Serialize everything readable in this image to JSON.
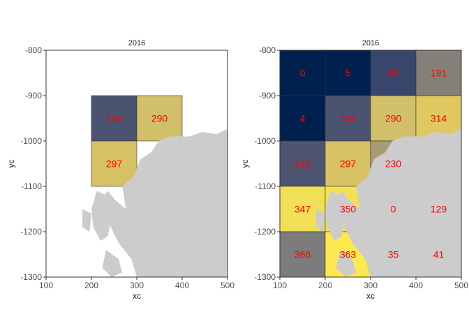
{
  "chart_data": [
    {
      "type": "heatmap",
      "title": "2016",
      "xlabel": "xc",
      "ylabel": "yc",
      "xlim": [
        100,
        500
      ],
      "ylim": [
        -1300,
        -800
      ],
      "x_ticks": [
        "100",
        "200",
        "300",
        "400",
        "500"
      ],
      "y_ticks": [
        "-800",
        "-900",
        "-1000",
        "-1100",
        "-1200",
        "-1300"
      ],
      "cell_width": 100,
      "cell_height": 100,
      "cells": [
        {
          "x0": 200,
          "y0": -1000,
          "value": 108,
          "label": "108",
          "color": "#4a5370"
        },
        {
          "x0": 300,
          "y0": -1000,
          "value": 290,
          "label": "290",
          "color": "#d2bf6a"
        },
        {
          "x0": 200,
          "y0": -1100,
          "value": 297,
          "label": "297",
          "color": "#d6c164"
        }
      ]
    },
    {
      "type": "heatmap",
      "title": "2016",
      "xlabel": "xc",
      "ylabel": "yc",
      "xlim": [
        100,
        500
      ],
      "ylim": [
        -1300,
        -800
      ],
      "x_ticks": [
        "100",
        "200",
        "300",
        "400",
        "500"
      ],
      "y_ticks": [
        "-800",
        "-900",
        "-1000",
        "-1100",
        "-1200",
        "-1300"
      ],
      "cell_width": 100,
      "cell_height": 100,
      "cells": [
        {
          "x0": 100,
          "y0": -900,
          "value": 0,
          "label": "0",
          "color": "#00204e"
        },
        {
          "x0": 200,
          "y0": -900,
          "value": 5,
          "label": "5",
          "color": "#00214f"
        },
        {
          "x0": 300,
          "y0": -900,
          "value": 80,
          "label": "80",
          "color": "#39466c"
        },
        {
          "x0": 400,
          "y0": -900,
          "value": 191,
          "label": "191",
          "color": "#858077"
        },
        {
          "x0": 100,
          "y0": -1000,
          "value": 4,
          "label": "4",
          "color": "#00214f"
        },
        {
          "x0": 200,
          "y0": -1000,
          "value": 108,
          "label": "108",
          "color": "#4a5370"
        },
        {
          "x0": 300,
          "y0": -1000,
          "value": 290,
          "label": "290",
          "color": "#d2bf6a"
        },
        {
          "x0": 400,
          "y0": -1000,
          "value": 314,
          "label": "314",
          "color": "#dfc85f"
        },
        {
          "x0": 100,
          "y0": -1100,
          "value": 112,
          "label": "112",
          "color": "#4d5570"
        },
        {
          "x0": 200,
          "y0": -1100,
          "value": 297,
          "label": "297",
          "color": "#d6c164"
        },
        {
          "x0": 300,
          "y0": -1100,
          "value": 230,
          "label": "230",
          "color": "#a69c74"
        },
        {
          "x0": 100,
          "y0": -1200,
          "value": 347,
          "label": "347",
          "color": "#f1df55"
        },
        {
          "x0": 200,
          "y0": -1200,
          "value": 350,
          "label": "350",
          "color": "#f3e153"
        },
        {
          "x0": 300,
          "y0": -1200,
          "value": 0,
          "label": "0",
          "color": "#00204e"
        },
        {
          "x0": 400,
          "y0": -1200,
          "value": 129,
          "label": "129",
          "color": "#565d6e"
        },
        {
          "x0": 100,
          "y0": -1300,
          "value": 366,
          "label": "366",
          "color": "#7c7c7c"
        },
        {
          "x0": 200,
          "y0": -1300,
          "value": 363,
          "label": "363",
          "color": "#fde94e"
        },
        {
          "x0": 300,
          "y0": -1300,
          "value": 35,
          "label": "35",
          "color": "#1d3263"
        },
        {
          "x0": 400,
          "y0": -1300,
          "value": 41,
          "label": "41",
          "color": "#21365f"
        }
      ]
    }
  ],
  "colors": {
    "land": "#cccccc",
    "cell_label": "#ff0000",
    "panel_background": "#ffffff"
  }
}
